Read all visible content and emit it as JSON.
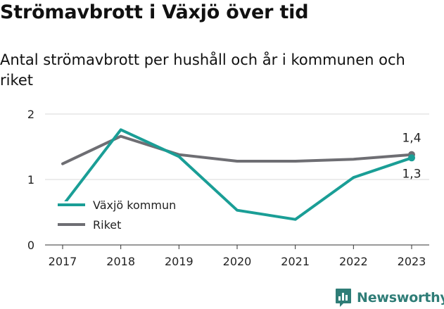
{
  "title": "Strömavbrott i Växjö över tid",
  "subtitle": "Antal strömavbrott per hushåll och år i kommunen och riket",
  "brand": "Newsworthy",
  "chart_data": {
    "type": "line",
    "x": [
      "2017",
      "2018",
      "2019",
      "2020",
      "2021",
      "2022",
      "2023"
    ],
    "ylim": [
      0,
      2
    ],
    "yticks": [
      "0",
      "1",
      "2"
    ],
    "grid": "horizontal",
    "legend_position": "bottom-left",
    "series": [
      {
        "name": "Växjö kommun",
        "color": "#1a9e96",
        "values": [
          0.6,
          1.76,
          1.35,
          0.53,
          0.39,
          1.03,
          1.33
        ]
      },
      {
        "name": "Riket",
        "color": "#6e6e73",
        "values": [
          1.24,
          1.66,
          1.38,
          1.28,
          1.28,
          1.31,
          1.38
        ]
      }
    ],
    "end_labels": [
      {
        "series": "Riket",
        "text": "1,4"
      },
      {
        "series": "Växjö kommun",
        "text": "1,3"
      }
    ]
  }
}
